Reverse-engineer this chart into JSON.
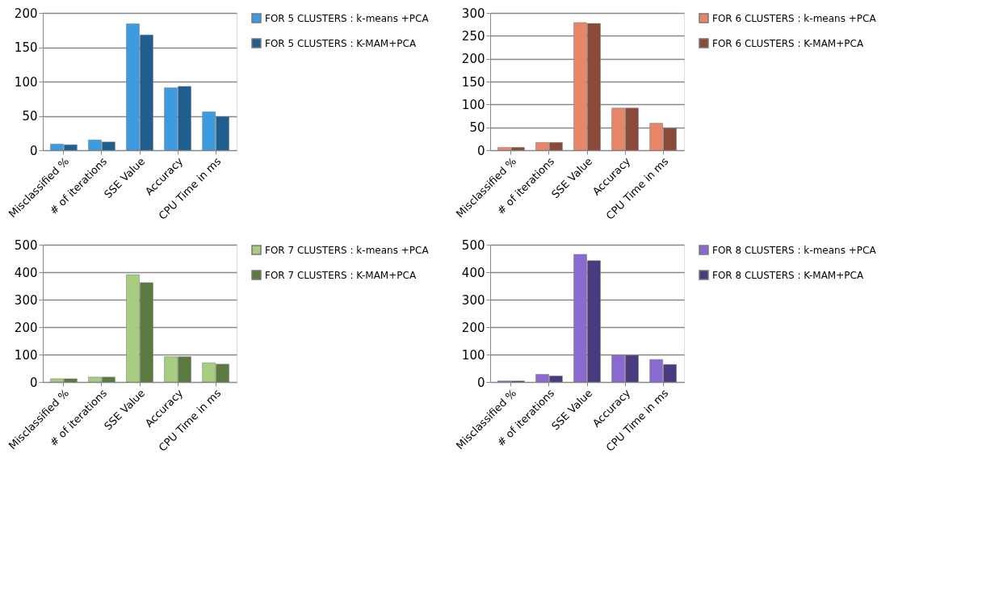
{
  "chart_data": [
    {
      "type": "bar",
      "categories": [
        "Misclassified %",
        "# of iterations",
        "SSE Value",
        "Accuracy",
        "CPU Time in ms"
      ],
      "ylim": [
        0,
        200
      ],
      "yticks": [
        0,
        50,
        100,
        150,
        200
      ],
      "grid": "y",
      "legend": "right",
      "series": [
        {
          "name": "FOR 5 CLUSTERS : k-means +PCA",
          "color": "#3d9be0",
          "values": [
            9,
            15,
            184,
            91,
            56
          ]
        },
        {
          "name": "FOR 5 CLUSTERS : K-MAM+PCA",
          "color": "#1f5f8f",
          "values": [
            8,
            12,
            168,
            93,
            49
          ]
        }
      ]
    },
    {
      "type": "bar",
      "categories": [
        "Misclassified %",
        "# of iterations",
        "SSE Value",
        "Accuracy",
        "CPU Time in ms"
      ],
      "ylim": [
        0,
        300
      ],
      "yticks": [
        0,
        50,
        100,
        150,
        200,
        250,
        300
      ],
      "grid": "y",
      "legend": "right",
      "series": [
        {
          "name": "FOR 6 CLUSTERS : k-means +PCA",
          "color": "#e8866a",
          "values": [
            6,
            17,
            279,
            92,
            59
          ]
        },
        {
          "name": "FOR 6 CLUSTERS : K-MAM+PCA",
          "color": "#8a4a3a",
          "values": [
            6,
            17,
            277,
            92,
            48
          ]
        }
      ]
    },
    {
      "type": "bar",
      "categories": [
        "Misclassified %",
        "# of iterations",
        "SSE Value",
        "Accuracy",
        "CPU Time in ms"
      ],
      "ylim": [
        0,
        500
      ],
      "yticks": [
        0,
        100,
        200,
        300,
        400,
        500
      ],
      "grid": "y",
      "legend": "right",
      "series": [
        {
          "name": "FOR 7 CLUSTERS : k-means +PCA",
          "color": "#a8cc80",
          "values": [
            12,
            18,
            391,
            92,
            70
          ]
        },
        {
          "name": "FOR 7 CLUSTERS : K-MAM+PCA",
          "color": "#5a7a40",
          "values": [
            12,
            18,
            362,
            92,
            65
          ]
        }
      ]
    },
    {
      "type": "bar",
      "categories": [
        "Misclassified %",
        "# of iterations",
        "SSE Value",
        "Accuracy",
        "CPU Time in ms"
      ],
      "ylim": [
        0,
        500
      ],
      "yticks": [
        0,
        100,
        200,
        300,
        400,
        500
      ],
      "grid": "y",
      "legend": "right",
      "series": [
        {
          "name": "FOR 8 CLUSTERS : k-means +PCA",
          "color": "#8a6ad0",
          "values": [
            4,
            28,
            465,
            97,
            82
          ]
        },
        {
          "name": "FOR 8 CLUSTERS : K-MAM+PCA",
          "color": "#4a3a80",
          "values": [
            4,
            22,
            442,
            97,
            64
          ]
        }
      ]
    }
  ]
}
